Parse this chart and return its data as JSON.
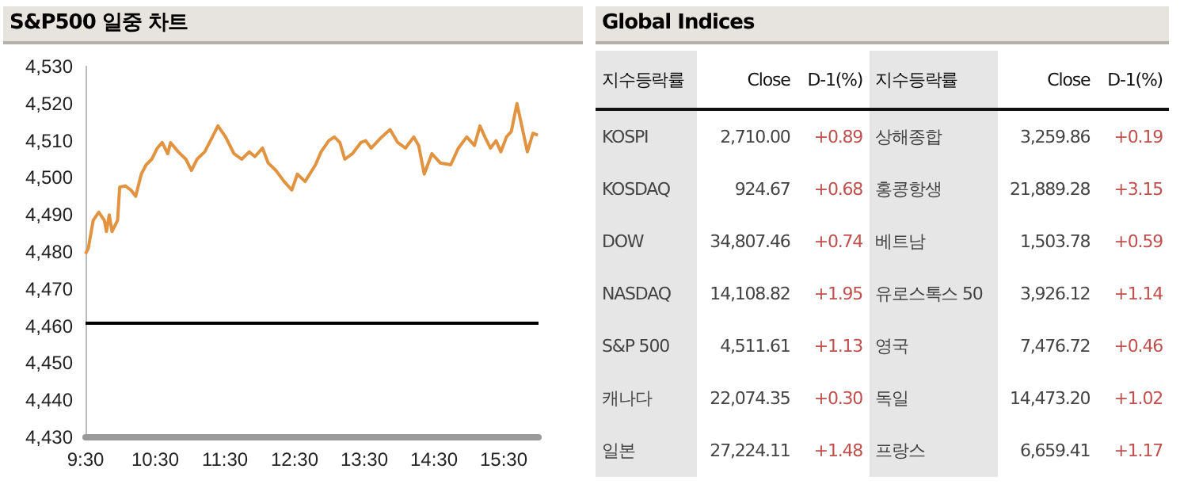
{
  "chart_data": [
    {
      "type": "line",
      "title": "S&P500 일중 차트",
      "x": [
        9.5,
        9.54,
        9.61,
        9.69,
        9.77,
        9.8,
        9.84,
        9.88,
        9.96,
        9.99,
        10.07,
        10.15,
        10.22,
        10.3,
        10.37,
        10.45,
        10.53,
        10.6,
        10.68,
        10.72,
        10.83,
        10.94,
        11.02,
        11.1,
        11.21,
        11.32,
        11.4,
        11.51,
        11.63,
        11.74,
        11.85,
        11.93,
        12.04,
        12.12,
        12.23,
        12.35,
        12.46,
        12.54,
        12.65,
        12.8,
        12.88,
        12.99,
        13.07,
        13.15,
        13.22,
        13.33,
        13.45,
        13.52,
        13.6,
        13.75,
        13.87,
        13.98,
        14.09,
        14.21,
        14.28,
        14.36,
        14.47,
        14.59,
        14.74,
        14.85,
        14.97,
        15.08,
        15.16,
        15.23,
        15.31,
        15.39,
        15.46,
        15.54,
        15.61,
        15.69,
        15.76,
        15.84,
        15.92,
        15.99
      ],
      "series": [
        {
          "color": "#e29340",
          "values": [
            4479.5,
            4481,
            4488.5,
            4490.7,
            4488.5,
            4485.5,
            4490,
            4485.5,
            4488.5,
            4497.5,
            4497.8,
            4496.7,
            4495,
            4501,
            4503.5,
            4505,
            4508,
            4509.5,
            4506.5,
            4509.5,
            4507,
            4505,
            4502,
            4505,
            4507,
            4511,
            4514,
            4511,
            4506.5,
            4505,
            4507,
            4505.7,
            4508,
            4504,
            4502,
            4499,
            4496.7,
            4501,
            4499,
            4503.5,
            4507,
            4510,
            4511,
            4509.5,
            4505,
            4506.5,
            4509.5,
            4510,
            4508,
            4511,
            4513,
            4509.5,
            4508,
            4511,
            4508.7,
            4501,
            4506.5,
            4504,
            4503.5,
            4508,
            4511,
            4508.7,
            4514,
            4511,
            4508,
            4510,
            4507,
            4511,
            4512.5,
            4520,
            4514,
            4507,
            4512,
            4511.5
          ]
        }
      ],
      "xlim": [
        9.5,
        16
      ],
      "xticks": [
        {
          "value": 9.5,
          "label": "9:30"
        },
        {
          "value": 10.5,
          "label": "10:30"
        },
        {
          "value": 11.5,
          "label": "11:30"
        },
        {
          "value": 12.5,
          "label": "12:30"
        },
        {
          "value": 13.5,
          "label": "13:30"
        },
        {
          "value": 14.5,
          "label": "14:30"
        },
        {
          "value": 15.5,
          "label": "15:30"
        }
      ],
      "ylim": [
        4430,
        4530
      ],
      "yticks": [
        {
          "value": 4430,
          "label": "4,430"
        },
        {
          "value": 4440,
          "label": "4,440"
        },
        {
          "value": 4450,
          "label": "4,450"
        },
        {
          "value": 4460,
          "label": "4,460"
        },
        {
          "value": 4470,
          "label": "4,470"
        },
        {
          "value": 4480,
          "label": "4,480"
        },
        {
          "value": 4490,
          "label": "4,490"
        },
        {
          "value": 4500,
          "label": "4,500"
        },
        {
          "value": 4510,
          "label": "4,510"
        },
        {
          "value": 4520,
          "label": "4,520"
        },
        {
          "value": 4530,
          "label": "4,530"
        }
      ],
      "ref_lines": [
        {
          "axis": "y",
          "value": 4461,
          "color": "#000000"
        }
      ],
      "grid": false,
      "marker": "none",
      "line_style": "solid"
    },
    {
      "type": "other",
      "title": "Global Indices",
      "categories": [
        "지수등락률",
        "Close",
        "D-1(%)",
        "지수등락률",
        "Close",
        "D-1(%)"
      ],
      "cell_labels": [
        [
          "KOSPI",
          "2,710.00",
          "+0.89",
          "상해종합",
          "3,259.86",
          "+0.19"
        ],
        [
          "KOSDAQ",
          "924.67",
          "+0.68",
          "홍콩항생",
          "21,889.28",
          "+3.15"
        ],
        [
          "DOW",
          "34,807.46",
          "+0.74",
          "베트남",
          "1,503.78",
          "+0.59"
        ],
        [
          "NASDAQ",
          "14,108.82",
          "+1.95",
          "유로스톡스 50",
          "3,926.12",
          "+1.14"
        ],
        [
          "S&P 500",
          "4,511.61",
          "+1.13",
          "영국",
          "7,476.72",
          "+0.46"
        ],
        [
          "캐나다",
          "22,074.35",
          "+0.30",
          "독일",
          "14,473.20",
          "+1.02"
        ],
        [
          "일본",
          "27,224.11",
          "+1.48",
          "프랑스",
          "6,659.41",
          "+1.17"
        ]
      ]
    }
  ]
}
